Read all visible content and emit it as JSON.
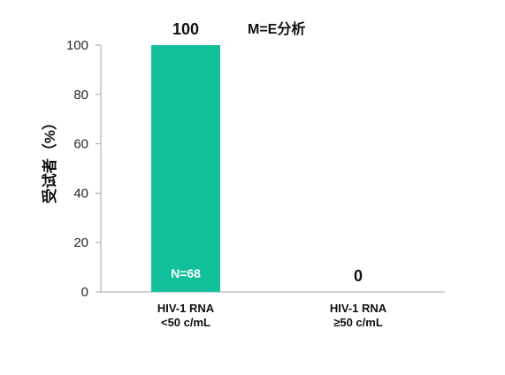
{
  "chart_data": {
    "type": "bar",
    "title": "M=E分析",
    "ylabel": "受试者（%）",
    "xlabel": "",
    "ylim": [
      0,
      100
    ],
    "yticks": [
      0,
      20,
      40,
      60,
      80,
      100
    ],
    "categories": [
      [
        "HIV-1 RNA",
        "<50 c/mL"
      ],
      [
        "HIV-1 RNA",
        "≥50 c/mL"
      ]
    ],
    "values": [
      100,
      0
    ],
    "value_labels": [
      "100",
      "0"
    ],
    "bar_annotations": [
      "N=68",
      ""
    ],
    "bar_color": "#12bf9b",
    "grid": false
  }
}
